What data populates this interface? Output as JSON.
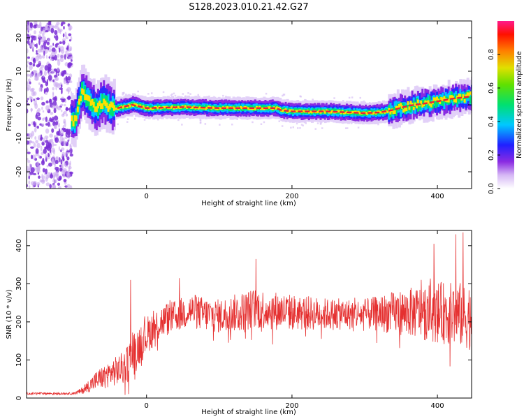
{
  "title": "S128.2023.010.21.42.G27",
  "colors": {
    "snr_line": "#e53030",
    "spectral_ridge": "#e8203a",
    "noise_cloud": "#7a2fd6"
  },
  "chart_data": [
    {
      "type": "heatmap",
      "xlabel": "Height of straight line (km)",
      "ylabel": "Frequency (Hz)",
      "xlim": [
        -165,
        447
      ],
      "ylim": [
        -25,
        25
      ],
      "xticks": [
        0,
        200,
        400
      ],
      "xtick_labels": [
        "0",
        "200",
        "400"
      ],
      "yticks": [
        -20,
        -10,
        0,
        10,
        20
      ],
      "ytick_labels": [
        "-20",
        "-10",
        "0",
        "10",
        "20"
      ],
      "colorbar": {
        "label": "Normalized spectral amplitude",
        "range": [
          0.0,
          1.0
        ],
        "ticks": [
          0.0,
          0.2,
          0.4,
          0.6,
          0.8
        ],
        "tick_labels": [
          "0.0",
          "0.2",
          "0.4",
          "0.6",
          "0.8"
        ],
        "colormap": "rainbow"
      },
      "ridge_frequency": {
        "x": [
          -100,
          -90,
          -80,
          -70,
          -60,
          -50,
          -40,
          -30,
          -20,
          0,
          50,
          100,
          150,
          178,
          185,
          200,
          250,
          270,
          300,
          320,
          340,
          360,
          380,
          400,
          420,
          447
        ],
        "y": [
          -5,
          4,
          1,
          -1,
          1,
          -1,
          -1,
          -0.5,
          0,
          -1,
          -0.7,
          -1,
          -1,
          -1,
          -1.6,
          -2,
          -2,
          -2.2,
          -2.5,
          -2.3,
          -1.5,
          -0.3,
          0.3,
          1,
          1.8,
          2.5
        ]
      },
      "noise_region_x": [
        -165,
        -100
      ],
      "grid": false,
      "legend": "none"
    },
    {
      "type": "line",
      "xlabel": "Height of straight line (km)",
      "ylabel": "SNR (10 * v/v)",
      "xlim": [
        -165,
        447
      ],
      "ylim": [
        0,
        440
      ],
      "xticks": [
        0,
        200,
        400
      ],
      "xtick_labels": [
        "0",
        "200",
        "400"
      ],
      "yticks": [
        0,
        100,
        200,
        300,
        400
      ],
      "ytick_labels": [
        "0",
        "100",
        "200",
        "300",
        "400"
      ],
      "series": [
        {
          "trend_x": [
            -165,
            -100,
            -90,
            -70,
            -50,
            -30,
            -20,
            -10,
            0,
            20,
            40,
            60,
            80,
            100,
            150,
            200,
            250,
            300,
            350,
            400,
            447
          ],
          "trend_y": [
            12,
            12,
            18,
            45,
            65,
            80,
            110,
            140,
            165,
            200,
            215,
            230,
            220,
            215,
            235,
            225,
            220,
            220,
            225,
            225,
            215
          ],
          "noise_amplitude": [
            3,
            3,
            8,
            25,
            35,
            45,
            60,
            55,
            50,
            45,
            42,
            45,
            45,
            45,
            55,
            48,
            42,
            40,
            60,
            80,
            90
          ],
          "peaks_x": [
            -22,
            45,
            150,
            395,
            425,
            435
          ],
          "peaks_y": [
            310,
            315,
            365,
            405,
            430,
            435
          ]
        }
      ],
      "grid": false,
      "legend": "none"
    }
  ]
}
